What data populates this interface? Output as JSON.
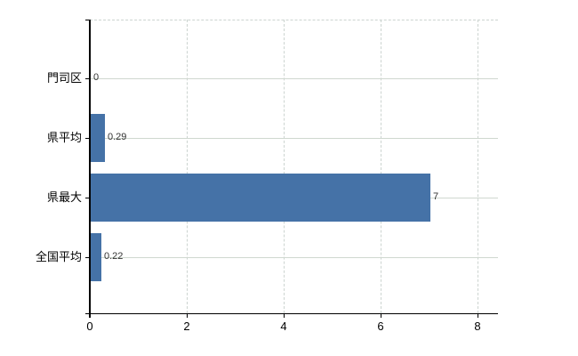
{
  "chart_data": {
    "type": "bar",
    "orientation": "horizontal",
    "title": "",
    "xlabel": "",
    "ylabel": "",
    "categories": [
      "門司区",
      "県平均",
      "県最大",
      "全国平均"
    ],
    "values": [
      0,
      0.29,
      7,
      0.22
    ],
    "value_labels": [
      "0",
      "0.29",
      "7",
      "0.22"
    ],
    "xticks": [
      0,
      2,
      4,
      6,
      8
    ],
    "xtick_labels": [
      "0",
      "2",
      "4",
      "6",
      "8"
    ],
    "xlim": [
      0,
      8.4
    ],
    "grid": true,
    "legend": false,
    "colors": {
      "bar": "#4572a7",
      "grid_horizontal": "#cfd8cf",
      "grid_vertical": "#ccd4d0",
      "axis": "#000000",
      "value_label": "#333333",
      "tick_label": "#000000",
      "background": "#ffffff"
    }
  }
}
